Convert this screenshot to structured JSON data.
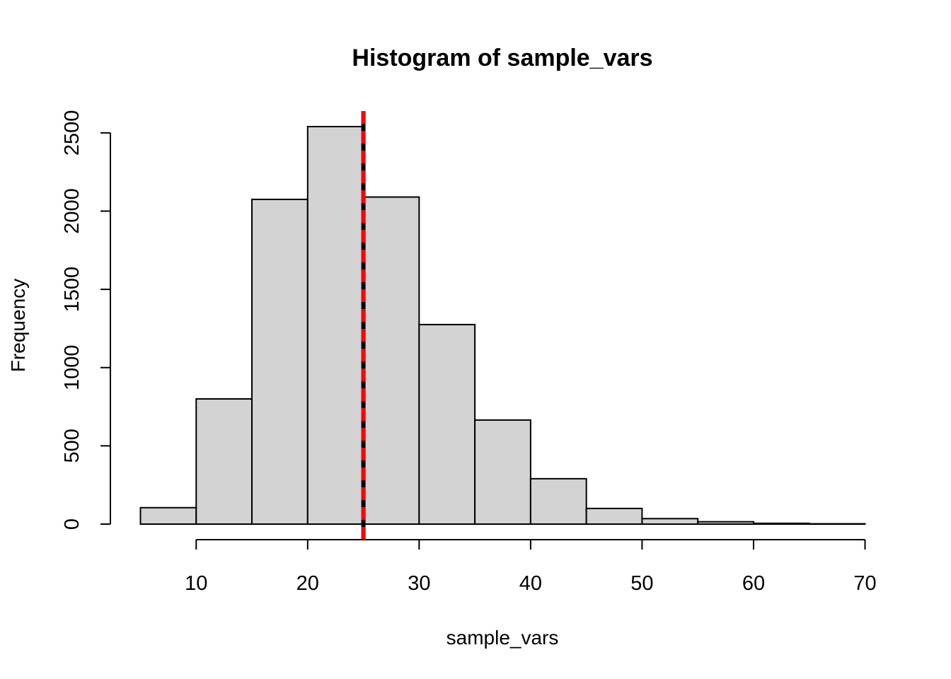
{
  "chart_data": {
    "type": "bar",
    "subtype": "histogram",
    "title": "Histogram of sample_vars",
    "xlabel": "sample_vars",
    "ylabel": "Frequency",
    "bin_edges": [
      5,
      10,
      15,
      20,
      25,
      30,
      35,
      40,
      45,
      50,
      55,
      60,
      65,
      70
    ],
    "values": [
      105,
      800,
      2075,
      2540,
      2090,
      1275,
      665,
      290,
      100,
      35,
      15,
      5,
      2
    ],
    "xlim": [
      5,
      70
    ],
    "ylim": [
      0,
      2540
    ],
    "x_ticks": [
      10,
      20,
      30,
      40,
      50,
      60,
      70
    ],
    "x_tick_labels": [
      "10",
      "20",
      "30",
      "40",
      "50",
      "60",
      "70"
    ],
    "y_ticks": [
      0,
      500,
      1000,
      1500,
      2000,
      2500
    ],
    "y_tick_labels": [
      "0",
      "500",
      "1000",
      "1500",
      "2000",
      "2500"
    ],
    "bar_fill": "#d3d3d3",
    "bar_stroke": "#000000",
    "vlines": [
      {
        "x": 25,
        "color": "#000000",
        "style": "solid"
      },
      {
        "x": 25,
        "color": "#ff0000",
        "style": "dashed"
      }
    ],
    "grid": false,
    "legend": "none"
  }
}
